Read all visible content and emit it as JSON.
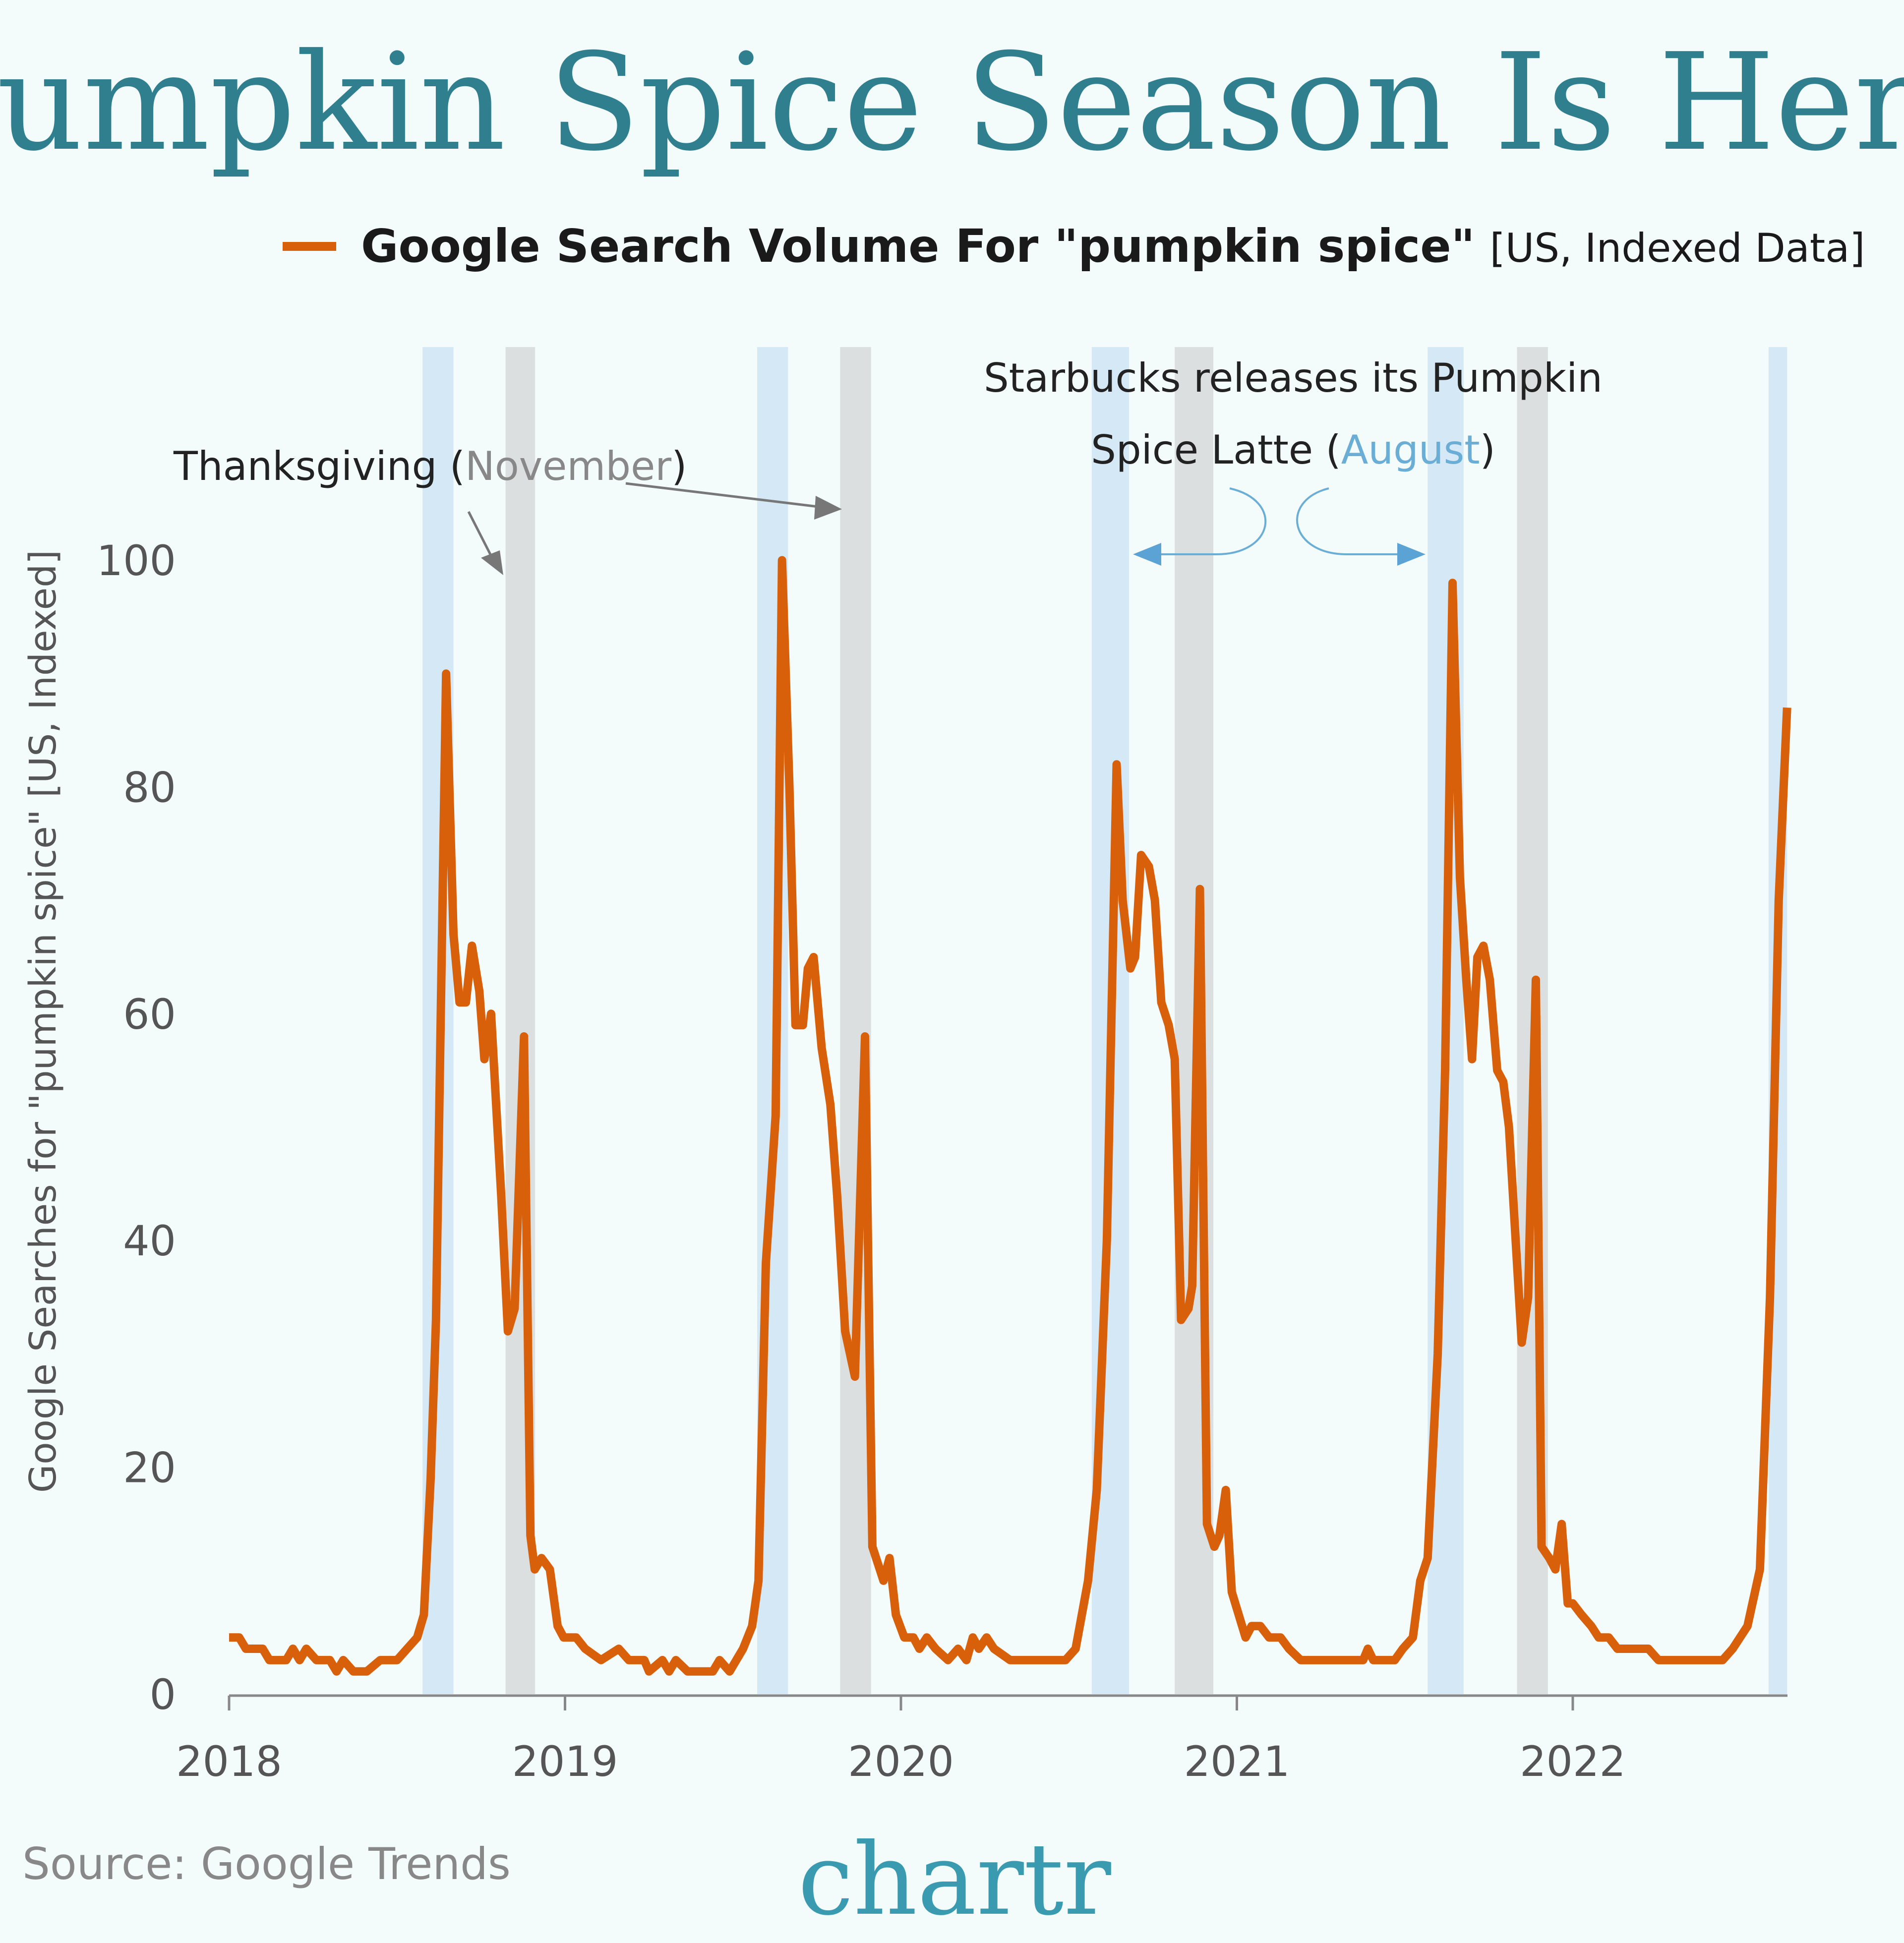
{
  "title": "Pumpkin Spice Season Is Here",
  "legend": {
    "bold": "Google Search Volume For \"pumpkin spice\"",
    "light": "[US, Indexed Data]"
  },
  "annotations": {
    "thanksgiving_prefix": "Thanksgiving (",
    "thanksgiving_month": "November",
    "thanksgiving_suffix": ")",
    "starbucks_line1": "Starbucks releases its Pumpkin",
    "starbucks_line2_prefix": "Spice Latte (",
    "starbucks_month": "August",
    "starbucks_line2_suffix": ")"
  },
  "source": "Source: Google Trends",
  "logo": "chartr",
  "colors": {
    "line": "#d9600a",
    "title": "#2f7f8f",
    "august_band": "#d5e8f5",
    "november_band": "#dcdfe0",
    "august_text": "#6aaed6"
  },
  "chart_data": {
    "type": "line",
    "title": "Pumpkin Spice Season Is Here",
    "ylabel": "Google Searches for \"pumpkin spice\" [US, Indexed]",
    "xlabel": "",
    "ylim": [
      0,
      100
    ],
    "xlim": [
      2018.0,
      2022.64
    ],
    "yticks": [
      "0",
      "20",
      "40",
      "60",
      "80",
      "100"
    ],
    "xticks": [
      "2018",
      "2019",
      "2020",
      "2021",
      "2022"
    ],
    "grid": false,
    "legend_position": "top",
    "series": [
      {
        "name": "Google Search Volume For \"pumpkin spice\" [US, Indexed Data]",
        "points": [
          [
            2018.0,
            5
          ],
          [
            2018.03,
            5
          ],
          [
            2018.05,
            4
          ],
          [
            2018.1,
            4
          ],
          [
            2018.12,
            3
          ],
          [
            2018.17,
            3
          ],
          [
            2018.19,
            4
          ],
          [
            2018.21,
            3
          ],
          [
            2018.23,
            4
          ],
          [
            2018.26,
            3
          ],
          [
            2018.3,
            3
          ],
          [
            2018.32,
            2
          ],
          [
            2018.34,
            3
          ],
          [
            2018.37,
            2
          ],
          [
            2018.41,
            2
          ],
          [
            2018.45,
            3
          ],
          [
            2018.5,
            3
          ],
          [
            2018.53,
            4
          ],
          [
            2018.56,
            5
          ],
          [
            2018.58,
            7
          ],
          [
            2018.6,
            19
          ],
          [
            2018.616,
            33
          ],
          [
            2018.646,
            90
          ],
          [
            2018.668,
            67
          ],
          [
            2018.686,
            61
          ],
          [
            2018.705,
            61
          ],
          [
            2018.723,
            66
          ],
          [
            2018.745,
            62
          ],
          [
            2018.76,
            56
          ],
          [
            2018.78,
            60
          ],
          [
            2018.81,
            44
          ],
          [
            2018.83,
            32
          ],
          [
            2018.85,
            34
          ],
          [
            2018.878,
            58
          ],
          [
            2018.897,
            14
          ],
          [
            2018.91,
            11
          ],
          [
            2018.93,
            12
          ],
          [
            2018.955,
            11
          ],
          [
            2018.978,
            6
          ],
          [
            2018.996,
            5
          ],
          [
            2019.033,
            5
          ],
          [
            2019.06,
            4
          ],
          [
            2019.107,
            3
          ],
          [
            2019.16,
            4
          ],
          [
            2019.19,
            3
          ],
          [
            2019.236,
            3
          ],
          [
            2019.25,
            2
          ],
          [
            2019.29,
            3
          ],
          [
            2019.31,
            2
          ],
          [
            2019.33,
            3
          ],
          [
            2019.365,
            2
          ],
          [
            2019.44,
            2
          ],
          [
            2019.46,
            3
          ],
          [
            2019.49,
            2
          ],
          [
            2019.53,
            4
          ],
          [
            2019.557,
            6
          ],
          [
            2019.576,
            10
          ],
          [
            2019.598,
            38
          ],
          [
            2019.627,
            51
          ],
          [
            2019.646,
            100
          ],
          [
            2019.668,
            80
          ],
          [
            2019.686,
            59
          ],
          [
            2019.708,
            59
          ],
          [
            2019.723,
            64
          ],
          [
            2019.74,
            65
          ],
          [
            2019.764,
            57
          ],
          [
            2019.79,
            52
          ],
          [
            2019.81,
            44
          ],
          [
            2019.834,
            32
          ],
          [
            2019.863,
            28
          ],
          [
            2019.893,
            58
          ],
          [
            2019.915,
            13
          ],
          [
            2019.948,
            10
          ],
          [
            2019.966,
            12
          ],
          [
            2019.985,
            7
          ],
          [
            2020.01,
            5
          ],
          [
            2020.037,
            5
          ],
          [
            2020.055,
            4
          ],
          [
            2020.077,
            5
          ],
          [
            2020.103,
            4
          ],
          [
            2020.14,
            3
          ],
          [
            2020.17,
            4
          ],
          [
            2020.195,
            3
          ],
          [
            2020.214,
            5
          ],
          [
            2020.232,
            4
          ],
          [
            2020.255,
            5
          ],
          [
            2020.277,
            4
          ],
          [
            2020.325,
            3
          ],
          [
            2020.49,
            3
          ],
          [
            2020.52,
            4
          ],
          [
            2020.557,
            10
          ],
          [
            2020.583,
            18
          ],
          [
            2020.613,
            40
          ],
          [
            2020.642,
            82
          ],
          [
            2020.66,
            70
          ],
          [
            2020.683,
            64
          ],
          [
            2020.697,
            65
          ],
          [
            2020.715,
            74
          ],
          [
            2020.738,
            73
          ],
          [
            2020.756,
            70
          ],
          [
            2020.775,
            61
          ],
          [
            2020.797,
            59
          ],
          [
            2020.815,
            56
          ],
          [
            2020.834,
            33
          ],
          [
            2020.856,
            34
          ],
          [
            2020.867,
            36
          ],
          [
            2020.89,
            71
          ],
          [
            2020.911,
            15
          ],
          [
            2020.933,
            13
          ],
          [
            2020.948,
            14
          ],
          [
            2020.967,
            18
          ],
          [
            2020.985,
            9
          ],
          [
            2021.026,
            5
          ],
          [
            2021.044,
            6
          ],
          [
            2021.07,
            6
          ],
          [
            2021.096,
            5
          ],
          [
            2021.13,
            5
          ],
          [
            2021.155,
            4
          ],
          [
            2021.19,
            3
          ],
          [
            2021.376,
            3
          ],
          [
            2021.39,
            4
          ],
          [
            2021.406,
            3
          ],
          [
            2021.47,
            3
          ],
          [
            2021.494,
            4
          ],
          [
            2021.524,
            5
          ],
          [
            2021.546,
            10
          ],
          [
            2021.568,
            12
          ],
          [
            2021.598,
            30
          ],
          [
            2021.62,
            55
          ],
          [
            2021.642,
            98
          ],
          [
            2021.664,
            72
          ],
          [
            2021.683,
            63
          ],
          [
            2021.7,
            56
          ],
          [
            2021.716,
            65
          ],
          [
            2021.734,
            66
          ],
          [
            2021.753,
            63
          ],
          [
            2021.775,
            55
          ],
          [
            2021.793,
            54
          ],
          [
            2021.81,
            50
          ],
          [
            2021.834,
            38
          ],
          [
            2021.848,
            31
          ],
          [
            2021.867,
            35
          ],
          [
            2021.89,
            63
          ],
          [
            2021.907,
            13
          ],
          [
            2021.93,
            12
          ],
          [
            2021.948,
            11
          ],
          [
            2021.967,
            15
          ],
          [
            2021.985,
            8
          ],
          [
            2022.0,
            8
          ],
          [
            2022.026,
            7
          ],
          [
            2022.055,
            6
          ],
          [
            2022.077,
            5
          ],
          [
            2022.107,
            5
          ],
          [
            2022.133,
            4
          ],
          [
            2022.225,
            4
          ],
          [
            2022.255,
            3
          ],
          [
            2022.446,
            3
          ],
          [
            2022.476,
            4
          ],
          [
            2022.52,
            6
          ],
          [
            2022.557,
            11
          ],
          [
            2022.587,
            35
          ],
          [
            2022.613,
            70
          ],
          [
            2022.638,
            87
          ]
        ]
      }
    ],
    "bands": {
      "august": [
        [
          2018.576,
          2018.668
        ],
        [
          2019.572,
          2019.664
        ],
        [
          2020.568,
          2020.679
        ],
        [
          2021.568,
          2021.675
        ],
        [
          2022.583,
          2022.638
        ]
      ],
      "november": [
        [
          2018.823,
          2018.911
        ],
        [
          2019.819,
          2019.911
        ],
        [
          2020.815,
          2020.93
        ],
        [
          2021.834,
          2021.926
        ]
      ]
    }
  }
}
